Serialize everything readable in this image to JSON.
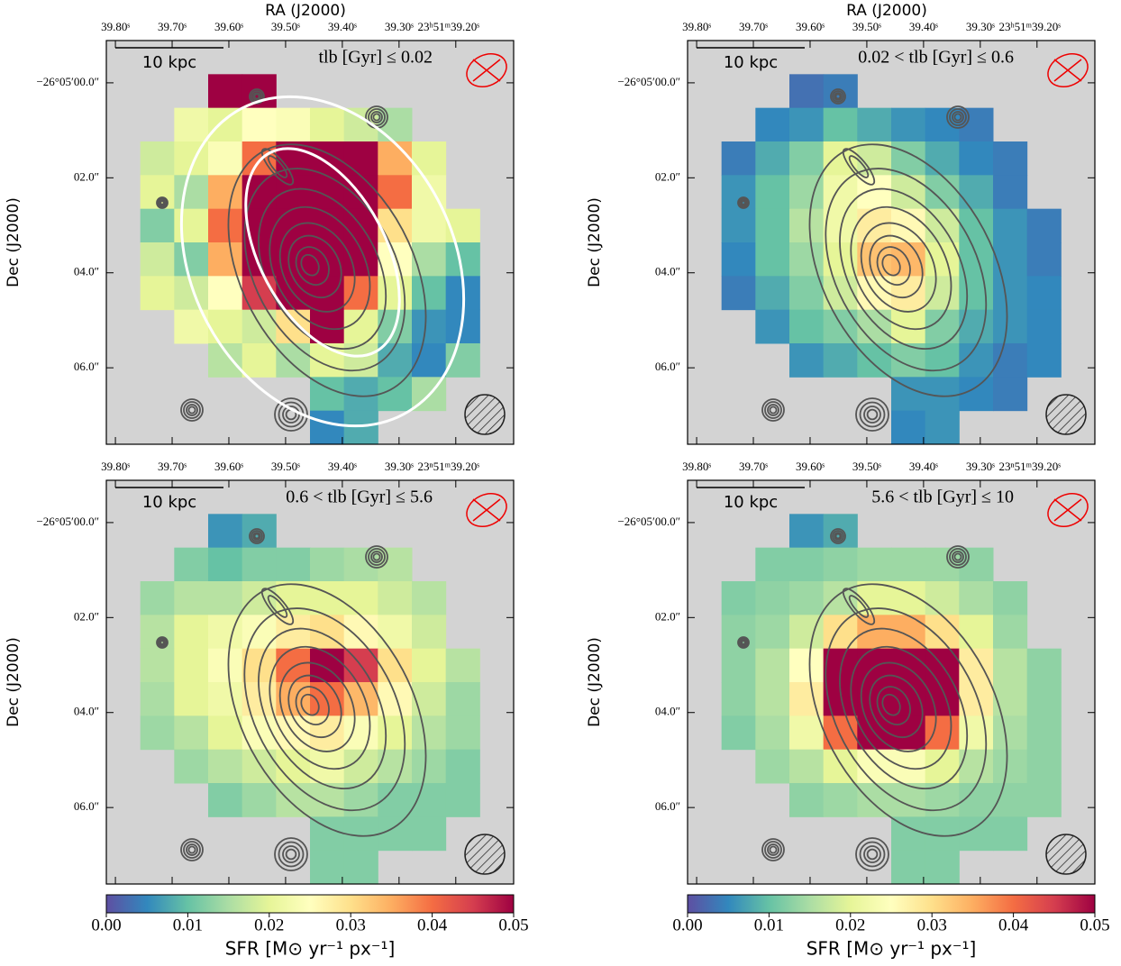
{
  "chart_data": [
    {
      "type": "heatmap",
      "title": "tlb [Gyr] ≤ 0.02",
      "xlabel": "RA (J2000)",
      "ylabel": "Dec (J2000)",
      "scalebar": "10 kpc",
      "xlim": [
        39.816,
        39.098
      ],
      "ylim": [
        -0.89,
        7.61
      ],
      "xticks": [
        {
          "value": 39.8,
          "label": "39.80ˢ"
        },
        {
          "value": 39.7,
          "label": "39.70ˢ"
        },
        {
          "value": 39.6,
          "label": "39.60ˢ"
        },
        {
          "value": 39.5,
          "label": "39.50ˢ"
        },
        {
          "value": 39.4,
          "label": "39.40ˢ"
        },
        {
          "value": 39.3,
          "label": "39.30ˢ"
        },
        {
          "value": 39.2,
          "label": "23ʰ51ᵐ39.20ˢ"
        }
      ],
      "yticks": [
        {
          "value": 0,
          "label": "−26°05′00.0″"
        },
        {
          "value": 2,
          "label": "02.0″"
        },
        {
          "value": 4,
          "label": "04.0″"
        },
        {
          "value": 6,
          "label": "06.0″"
        }
      ],
      "grid": [
        [
          null,
          null,
          null,
          null,
          null,
          null,
          null,
          null,
          null,
          null,
          null,
          null
        ],
        [
          null,
          null,
          null,
          0.05,
          0.05,
          null,
          null,
          null,
          null,
          null,
          null,
          null
        ],
        [
          null,
          null,
          0.022,
          0.02,
          0.025,
          0.024,
          0.02,
          0.018,
          0.015,
          null,
          null,
          null
        ],
        [
          null,
          0.018,
          0.02,
          0.024,
          0.04,
          0.05,
          0.05,
          0.05,
          0.035,
          0.02,
          null,
          null
        ],
        [
          null,
          0.02,
          0.015,
          0.035,
          0.05,
          0.05,
          0.05,
          0.05,
          0.04,
          0.022,
          null,
          null
        ],
        [
          null,
          0.012,
          0.02,
          0.04,
          0.05,
          0.05,
          0.05,
          0.05,
          0.03,
          0.022,
          0.02,
          null
        ],
        [
          null,
          0.018,
          0.012,
          0.035,
          0.05,
          0.05,
          0.05,
          0.05,
          0.025,
          0.015,
          0.01,
          null
        ],
        [
          null,
          0.02,
          0.018,
          0.025,
          0.045,
          0.05,
          0.05,
          0.04,
          0.02,
          0.01,
          0.005,
          null
        ],
        [
          null,
          null,
          0.022,
          0.02,
          0.018,
          0.03,
          0.05,
          0.02,
          0.012,
          0.006,
          0.005,
          null
        ],
        [
          null,
          null,
          null,
          0.016,
          0.02,
          0.015,
          0.02,
          0.018,
          0.008,
          0.005,
          0.012,
          null
        ],
        [
          null,
          null,
          null,
          null,
          null,
          null,
          0.01,
          0.008,
          0.01,
          0.015,
          null,
          null
        ],
        [
          null,
          null,
          null,
          null,
          null,
          null,
          0.005,
          0.008,
          null,
          null,
          null,
          null
        ]
      ]
    },
    {
      "type": "heatmap",
      "title": "0.02 < tlb [Gyr] ≤ 0.6",
      "xlabel": "RA (J2000)",
      "ylabel": "Dec (J2000)",
      "scalebar": "10 kpc",
      "xlim": [
        39.816,
        39.098
      ],
      "ylim": [
        -0.89,
        7.61
      ],
      "xticks": [
        {
          "value": 39.8,
          "label": "39.80ˢ"
        },
        {
          "value": 39.7,
          "label": "39.70ˢ"
        },
        {
          "value": 39.6,
          "label": "39.60ˢ"
        },
        {
          "value": 39.5,
          "label": "39.50ˢ"
        },
        {
          "value": 39.4,
          "label": "39.40ˢ"
        },
        {
          "value": 39.3,
          "label": "39.30ˢ"
        },
        {
          "value": 39.2,
          "label": "23ʰ51ᵐ39.20ˢ"
        }
      ],
      "yticks": [
        {
          "value": 0,
          "label": "−26°05′00.0″"
        },
        {
          "value": 2,
          "label": "02.0″"
        },
        {
          "value": 4,
          "label": "04.0″"
        },
        {
          "value": 6,
          "label": "06.0″"
        }
      ],
      "grid": [
        [
          null,
          null,
          null,
          null,
          null,
          null,
          null,
          null,
          null,
          null,
          null,
          null
        ],
        [
          null,
          null,
          null,
          0.003,
          0.004,
          null,
          null,
          null,
          null,
          null,
          null,
          null
        ],
        [
          null,
          null,
          0.005,
          0.006,
          0.01,
          0.008,
          0.006,
          0.005,
          0.004,
          null,
          null,
          null
        ],
        [
          null,
          0.004,
          0.008,
          0.012,
          0.02,
          0.018,
          0.012,
          0.008,
          0.005,
          0.004,
          null,
          null
        ],
        [
          null,
          0.006,
          0.01,
          0.014,
          0.022,
          0.025,
          0.018,
          0.012,
          0.008,
          0.004,
          null,
          null
        ],
        [
          null,
          0.006,
          0.01,
          0.016,
          0.022,
          0.028,
          0.026,
          0.018,
          0.01,
          0.006,
          0.004,
          null
        ],
        [
          null,
          0.005,
          0.01,
          0.014,
          0.02,
          0.033,
          0.034,
          0.02,
          0.01,
          0.006,
          0.004,
          null
        ],
        [
          null,
          0.004,
          0.008,
          0.012,
          0.018,
          0.026,
          0.028,
          0.018,
          0.01,
          0.006,
          0.005,
          null
        ],
        [
          null,
          null,
          0.006,
          0.01,
          0.012,
          0.015,
          0.02,
          0.012,
          0.008,
          0.006,
          0.005,
          null
        ],
        [
          null,
          null,
          null,
          0.006,
          0.008,
          0.01,
          0.012,
          0.01,
          0.006,
          0.004,
          0.005,
          null
        ],
        [
          null,
          null,
          null,
          null,
          null,
          null,
          0.006,
          0.006,
          0.005,
          0.004,
          null,
          null
        ],
        [
          null,
          null,
          null,
          null,
          null,
          null,
          0.005,
          0.006,
          null,
          null,
          null,
          null
        ]
      ]
    },
    {
      "type": "heatmap",
      "title": "0.6 < tlb [Gyr] ≤ 5.6",
      "ylabel": "Dec (J2000)",
      "scalebar": "10 kpc",
      "xlim": [
        39.816,
        39.098
      ],
      "ylim": [
        -0.89,
        7.61
      ],
      "xticks": [
        {
          "value": 39.8,
          "label": "39.80ˢ"
        },
        {
          "value": 39.7,
          "label": "39.70ˢ"
        },
        {
          "value": 39.6,
          "label": "39.60ˢ"
        },
        {
          "value": 39.5,
          "label": "39.50ˢ"
        },
        {
          "value": 39.4,
          "label": "39.40ˢ"
        },
        {
          "value": 39.3,
          "label": "39.30ˢ"
        },
        {
          "value": 39.2,
          "label": "23ⁿ51ᵐ39.20ˢ"
        }
      ],
      "yticks": [
        {
          "value": 0,
          "label": "−26°05′00.0″"
        },
        {
          "value": 2,
          "label": "02.0″"
        },
        {
          "value": 4,
          "label": "04.0″"
        },
        {
          "value": 6,
          "label": "06.0″"
        }
      ],
      "grid": [
        [
          null,
          null,
          null,
          null,
          null,
          null,
          null,
          null,
          null,
          null,
          null,
          null
        ],
        [
          null,
          null,
          null,
          0.006,
          0.008,
          null,
          null,
          null,
          null,
          null,
          null,
          null
        ],
        [
          null,
          null,
          0.012,
          0.01,
          0.012,
          0.012,
          0.014,
          0.015,
          0.016,
          null,
          null,
          null
        ],
        [
          null,
          0.014,
          0.016,
          0.016,
          0.018,
          0.02,
          0.02,
          0.02,
          0.018,
          0.016,
          null,
          null
        ],
        [
          null,
          0.016,
          0.02,
          0.022,
          0.024,
          0.028,
          0.03,
          0.026,
          0.022,
          0.018,
          null,
          null
        ],
        [
          null,
          0.016,
          0.02,
          0.024,
          0.03,
          0.04,
          0.05,
          0.045,
          0.03,
          0.02,
          0.016,
          null
        ],
        [
          null,
          0.015,
          0.02,
          0.022,
          0.028,
          0.035,
          0.04,
          0.034,
          0.026,
          0.018,
          0.014,
          null
        ],
        [
          null,
          0.014,
          0.016,
          0.02,
          0.024,
          0.026,
          0.028,
          0.024,
          0.02,
          0.016,
          0.014,
          null
        ],
        [
          null,
          null,
          0.014,
          0.016,
          0.018,
          0.02,
          0.022,
          0.018,
          0.016,
          0.014,
          0.012,
          null
        ],
        [
          null,
          null,
          null,
          0.012,
          0.014,
          0.016,
          0.016,
          0.014,
          0.012,
          0.012,
          0.012,
          null
        ],
        [
          null,
          null,
          null,
          null,
          null,
          null,
          0.012,
          0.012,
          0.012,
          0.012,
          null,
          null
        ],
        [
          null,
          null,
          null,
          null,
          null,
          null,
          0.012,
          0.012,
          null,
          null,
          null,
          null
        ]
      ],
      "colorbar": {
        "label": "SFR [M⊙ yr⁻¹ px⁻¹]",
        "lim": [
          0,
          0.05
        ],
        "ticks": [
          {
            "value": 0,
            "label": "0.00"
          },
          0.01,
          0.02,
          0.03,
          0.04,
          0.05
        ],
        "colors": [
          "#5e4fa2",
          "#3288bd",
          "#66c2a5",
          "#abdda4",
          "#e6f598",
          "#ffffbf",
          "#fee08b",
          "#fdae61",
          "#f46d43",
          "#d53e4f",
          "#9e0142"
        ]
      }
    },
    {
      "type": "heatmap",
      "title": "5.6 < tlb [Gyr] ≤ 10",
      "ylabel": "Dec (J2000)",
      "scalebar": "10 kpc",
      "xlim": [
        39.816,
        39.098
      ],
      "ylim": [
        -0.89,
        7.61
      ],
      "xticks": [
        {
          "value": 39.8,
          "label": "39.80ˢ"
        },
        {
          "value": 39.7,
          "label": "39.70ˢ"
        },
        {
          "value": 39.6,
          "label": "39.60ˢ"
        },
        {
          "value": 39.5,
          "label": "39.50ˢ"
        },
        {
          "value": 39.4,
          "label": "39.40ˢ"
        },
        {
          "value": 39.3,
          "label": "39.30ˢ"
        },
        {
          "value": 39.2,
          "label": "23ⁿ51ᵐ39.20ˢ"
        }
      ],
      "yticks": [
        {
          "value": 0,
          "label": "−26°05′00.0″"
        },
        {
          "value": 2,
          "label": "02.0″"
        },
        {
          "value": 4,
          "label": "04.0″"
        },
        {
          "value": 6,
          "label": "06.0″"
        }
      ],
      "grid": [
        [
          null,
          null,
          null,
          null,
          null,
          null,
          null,
          null,
          null,
          null,
          null,
          null
        ],
        [
          null,
          null,
          null,
          0.006,
          0.008,
          null,
          null,
          null,
          null,
          null,
          null,
          null
        ],
        [
          null,
          null,
          0.012,
          0.012,
          0.013,
          0.014,
          0.014,
          0.014,
          0.013,
          null,
          null,
          null
        ],
        [
          null,
          0.012,
          0.013,
          0.014,
          0.016,
          0.02,
          0.02,
          0.018,
          0.015,
          0.013,
          null,
          null
        ],
        [
          null,
          0.013,
          0.014,
          0.018,
          0.03,
          0.035,
          0.035,
          0.03,
          0.02,
          0.014,
          null,
          null
        ],
        [
          null,
          0.013,
          0.016,
          0.025,
          0.05,
          0.05,
          0.05,
          0.05,
          0.028,
          0.016,
          0.013,
          null
        ],
        [
          null,
          0.013,
          0.016,
          0.028,
          0.05,
          0.05,
          0.05,
          0.05,
          0.028,
          0.016,
          0.013,
          null
        ],
        [
          null,
          0.012,
          0.015,
          0.022,
          0.04,
          0.05,
          0.05,
          0.04,
          0.022,
          0.015,
          0.013,
          null
        ],
        [
          null,
          null,
          0.014,
          0.016,
          0.02,
          0.024,
          0.024,
          0.02,
          0.016,
          0.014,
          0.013,
          null
        ],
        [
          null,
          null,
          null,
          0.013,
          0.014,
          0.015,
          0.015,
          0.014,
          0.013,
          0.013,
          0.013,
          null
        ],
        [
          null,
          null,
          null,
          null,
          null,
          null,
          0.012,
          0.012,
          0.012,
          0.012,
          null,
          null
        ],
        [
          null,
          null,
          null,
          null,
          null,
          null,
          0.012,
          0.012,
          null,
          null,
          null,
          null
        ]
      ],
      "colorbar": {
        "label": "SFR [M⊙ yr⁻¹ px⁻¹]",
        "lim": [
          0,
          0.05
        ],
        "ticks": [
          {
            "value": 0,
            "label": "0.00"
          },
          0.01,
          0.02,
          0.03,
          0.04,
          0.05
        ],
        "colors": [
          "#5e4fa2",
          "#3288bd",
          "#66c2a5",
          "#abdda4",
          "#e6f598",
          "#ffffbf",
          "#fee08b",
          "#fdae61",
          "#f46d43",
          "#d53e4f",
          "#9e0142"
        ]
      }
    }
  ]
}
